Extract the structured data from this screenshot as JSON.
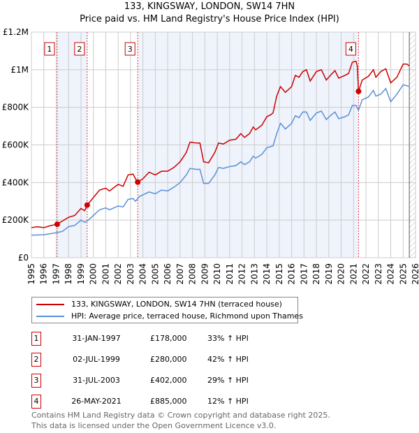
{
  "chart_data": {
    "type": "line",
    "title": "133, KINGSWAY, LONDON, SW14 7HN",
    "subtitle": "Price paid vs. HM Land Registry's House Price Index (HPI)",
    "xlim": [
      1995,
      2026
    ],
    "ylim": [
      0,
      1200000
    ],
    "x_ticks": [
      "1995",
      "1996",
      "1997",
      "1998",
      "1999",
      "2000",
      "2001",
      "2002",
      "2003",
      "2004",
      "2005",
      "2006",
      "2007",
      "2008",
      "2009",
      "2010",
      "2011",
      "2012",
      "2013",
      "2014",
      "2015",
      "2016",
      "2017",
      "2018",
      "2019",
      "2020",
      "2021",
      "2022",
      "2023",
      "2024",
      "2025",
      "2026"
    ],
    "y_ticks": [
      {
        "v": 0,
        "label": "£0"
      },
      {
        "v": 200000,
        "label": "£200K"
      },
      {
        "v": 400000,
        "label": "£400K"
      },
      {
        "v": 600000,
        "label": "£600K"
      },
      {
        "v": 800000,
        "label": "£800K"
      },
      {
        "v": 1000000,
        "label": "£1M"
      },
      {
        "v": 1200000,
        "label": "£1.2M"
      }
    ],
    "grid": true,
    "series": [
      {
        "name": "133, KINGSWAY, LONDON, SW14 7HN (terraced house)",
        "color": "#cc0000",
        "x": [
          1995,
          1995.5,
          1996,
          1996.5,
          1997.08,
          1997.5,
          1998,
          1998.5,
          1999,
          1999.3,
          1999.5,
          2000,
          2000.5,
          2001,
          2001.3,
          2002,
          2002.4,
          2002.8,
          2003.2,
          2003.4,
          2003.58,
          2004,
          2004.5,
          2005,
          2005.5,
          2006,
          2006.5,
          2007,
          2007.5,
          2007.8,
          2008.3,
          2008.6,
          2008.9,
          2009.3,
          2009.8,
          2010.1,
          2010.5,
          2011,
          2011.5,
          2011.9,
          2012.2,
          2012.6,
          2012.9,
          2013.1,
          2013.6,
          2014,
          2014.3,
          2014.5,
          2014.8,
          2015.1,
          2015.5,
          2016,
          2016.3,
          2016.6,
          2016.9,
          2017.2,
          2017.5,
          2018,
          2018.4,
          2018.8,
          2019.2,
          2019.5,
          2019.8,
          2020.3,
          2020.6,
          2020.9,
          2021.2,
          2021.3,
          2021.4,
          2021.7,
          2022.2,
          2022.6,
          2022.8,
          2023.2,
          2023.6,
          2024,
          2024.5,
          2025,
          2025.3,
          2025.5
        ],
        "y": [
          160,
          165,
          160,
          170,
          178,
          195,
          215,
          225,
          262,
          250,
          280,
          320,
          360,
          370,
          355,
          390,
          380,
          440,
          445,
          420,
          402,
          420,
          455,
          440,
          460,
          460,
          480,
          510,
          560,
          615,
          610,
          610,
          510,
          505,
          560,
          610,
          605,
          625,
          630,
          660,
          640,
          660,
          695,
          680,
          705,
          750,
          760,
          770,
          860,
          910,
          880,
          910,
          970,
          960,
          990,
          1000,
          940,
          990,
          1000,
          945,
          975,
          995,
          955,
          970,
          980,
          1040,
          1045,
          1020,
          885,
          945,
          965,
          1000,
          960,
          990,
          1005,
          930,
          960,
          1030,
          1030,
          1020
        ]
      },
      {
        "name": "HPI: Average price, terraced house, Richmond upon Thames",
        "color": "#5b8fd6",
        "x": [
          1995,
          1996,
          1997,
          1997.5,
          1998,
          1998.5,
          1999,
          1999.3,
          1999.6,
          2000,
          2000.5,
          2001,
          2001.3,
          2002,
          2002.4,
          2002.8,
          2003.2,
          2003.4,
          2003.7,
          2004.5,
          2005,
          2005.5,
          2006,
          2006.5,
          2007,
          2007.5,
          2007.8,
          2008.3,
          2008.6,
          2008.9,
          2009.3,
          2009.8,
          2010.1,
          2010.5,
          2011,
          2011.5,
          2011.9,
          2012.2,
          2012.6,
          2012.9,
          2013.1,
          2013.6,
          2014,
          2014.5,
          2014.8,
          2015.1,
          2015.5,
          2016,
          2016.3,
          2016.6,
          2016.9,
          2017.2,
          2017.5,
          2018,
          2018.4,
          2018.8,
          2019.2,
          2019.5,
          2019.8,
          2020.3,
          2020.6,
          2020.9,
          2021.2,
          2021.4,
          2021.7,
          2022.2,
          2022.6,
          2022.8,
          2023.2,
          2023.6,
          2024,
          2024.5,
          2025,
          2025.3,
          2025.5
        ],
        "y": [
          120,
          122,
          133,
          140,
          165,
          172,
          200,
          188,
          200,
          225,
          255,
          265,
          255,
          275,
          270,
          310,
          315,
          300,
          325,
          350,
          340,
          360,
          355,
          375,
          400,
          440,
          475,
          470,
          470,
          395,
          395,
          440,
          480,
          475,
          485,
          490,
          510,
          495,
          510,
          540,
          530,
          550,
          585,
          595,
          660,
          715,
          685,
          715,
          755,
          745,
          775,
          775,
          730,
          770,
          780,
          735,
          760,
          775,
          740,
          750,
          760,
          810,
          810,
          785,
          840,
          855,
          890,
          860,
          870,
          900,
          830,
          870,
          920,
          915,
          910
        ]
      }
    ],
    "y_unit": "thousands GBP",
    "sales": [
      {
        "label": "1",
        "x": 1997.08,
        "y": 178
      },
      {
        "label": "2",
        "x": 1999.5,
        "y": 280
      },
      {
        "label": "3",
        "x": 2003.58,
        "y": 402
      },
      {
        "label": "4",
        "x": 2021.4,
        "y": 885
      }
    ],
    "shaded": [
      [
        1997.08,
        1999.5
      ],
      [
        2003.58,
        2021.4
      ]
    ],
    "hatched_from": 2025.5,
    "legend_placement": "bottom"
  },
  "title": "133, KINGSWAY, LONDON, SW14 7HN",
  "subtitle": "Price paid vs. HM Land Registry's House Price Index (HPI)",
  "legend": [
    "133, KINGSWAY, LONDON, SW14 7HN (terraced house)",
    "HPI: Average price, terraced house, Richmond upon Thames"
  ],
  "table": [
    {
      "num": "1",
      "date": "31-JAN-1997",
      "price": "£178,000",
      "pct": "33% ↑ HPI"
    },
    {
      "num": "2",
      "date": "02-JUL-1999",
      "price": "£280,000",
      "pct": "42% ↑ HPI"
    },
    {
      "num": "3",
      "date": "31-JUL-2003",
      "price": "£402,000",
      "pct": "29% ↑ HPI"
    },
    {
      "num": "4",
      "date": "26-MAY-2021",
      "price": "£885,000",
      "pct": "12% ↑ HPI"
    }
  ],
  "footer": [
    "Contains HM Land Registry data © Crown copyright and database right 2025.",
    "This data is licensed under the Open Government Licence v3.0."
  ]
}
